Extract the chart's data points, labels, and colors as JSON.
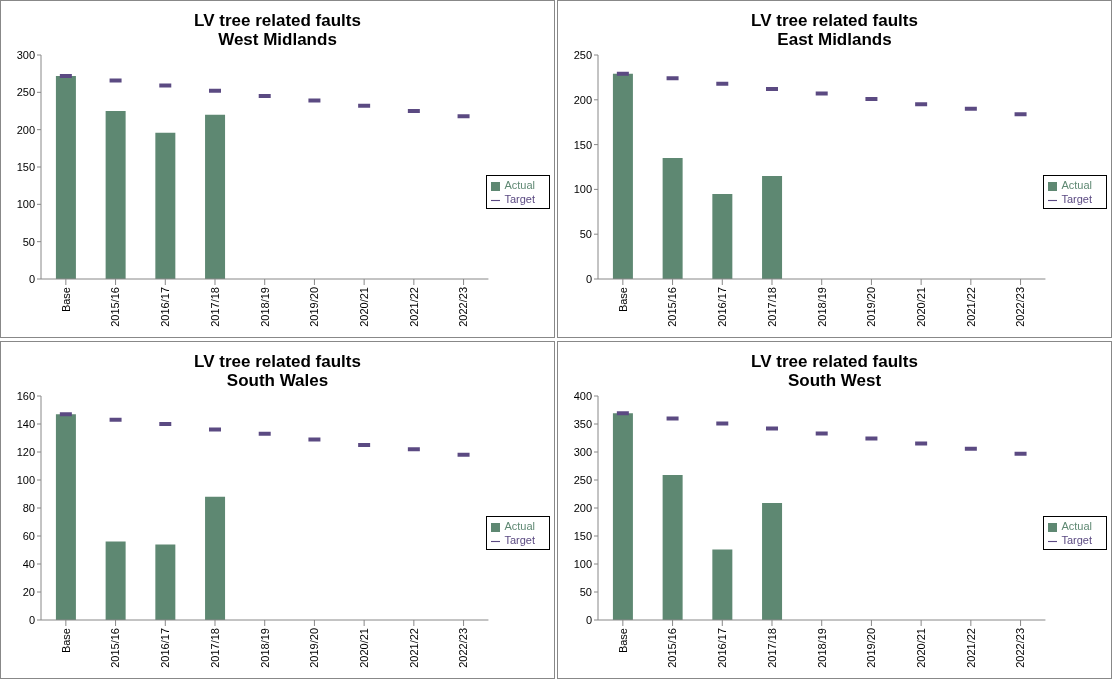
{
  "chart_data": [
    {
      "type": "bar",
      "title": "LV tree related faults",
      "subtitle": "West Midlands",
      "categories": [
        "Base",
        "2015/16",
        "2016/17",
        "2017/18",
        "2018/19",
        "2019/20",
        "2020/21",
        "2021/22",
        "2022/23"
      ],
      "ylim": [
        0,
        300
      ],
      "yticks": [
        0,
        50,
        100,
        150,
        200,
        250,
        300
      ],
      "legend": "right",
      "series": [
        {
          "name": "Actual",
          "color": "#5e8872",
          "values": [
            272,
            225,
            196,
            220,
            null,
            null,
            null,
            null,
            null
          ]
        },
        {
          "name": "Target",
          "type": "scatter",
          "color": "#5b4a82",
          "x": [
            "Base",
            "2015/16",
            "2016/17",
            "2017/18",
            "2018/19",
            "2019/20",
            "2020/21",
            "2021/22",
            "2022/23"
          ],
          "values": [
            272,
            266,
            259,
            252,
            245,
            239,
            232,
            225,
            218
          ]
        }
      ]
    },
    {
      "type": "bar",
      "title": "LV tree related faults",
      "subtitle": "East Midlands",
      "categories": [
        "Base",
        "2015/16",
        "2016/17",
        "2017/18",
        "2018/19",
        "2019/20",
        "2020/21",
        "2021/22",
        "2022/23"
      ],
      "ylim": [
        0,
        250
      ],
      "yticks": [
        0,
        50,
        100,
        150,
        200,
        250
      ],
      "legend": "right",
      "series": [
        {
          "name": "Actual",
          "color": "#5e8872",
          "values": [
            229,
            135,
            95,
            115,
            null,
            null,
            null,
            null,
            null
          ]
        },
        {
          "name": "Target",
          "type": "scatter",
          "color": "#5b4a82",
          "x": [
            "Base",
            "2015/16",
            "2016/17",
            "2017/18",
            "2018/19",
            "2019/20",
            "2020/21",
            "2021/22",
            "2022/23"
          ],
          "values": [
            229,
            224,
            218,
            212,
            207,
            201,
            195,
            190,
            184
          ]
        }
      ]
    },
    {
      "type": "bar",
      "title": "LV tree related faults",
      "subtitle": "South Wales",
      "categories": [
        "Base",
        "2015/16",
        "2016/17",
        "2017/18",
        "2018/19",
        "2019/20",
        "2020/21",
        "2021/22",
        "2022/23"
      ],
      "ylim": [
        0,
        160
      ],
      "yticks": [
        0,
        20,
        40,
        60,
        80,
        100,
        120,
        140,
        160
      ],
      "legend": "right",
      "series": [
        {
          "name": "Actual",
          "color": "#5e8872",
          "values": [
            147,
            56,
            54,
            88,
            null,
            null,
            null,
            null,
            null
          ]
        },
        {
          "name": "Target",
          "type": "scatter",
          "color": "#5b4a82",
          "x": [
            "Base",
            "2015/16",
            "2016/17",
            "2017/18",
            "2018/19",
            "2019/20",
            "2020/21",
            "2021/22",
            "2022/23"
          ],
          "values": [
            147,
            143,
            140,
            136,
            133,
            129,
            125,
            122,
            118
          ]
        }
      ]
    },
    {
      "type": "bar",
      "title": "LV tree related faults",
      "subtitle": "South West",
      "categories": [
        "Base",
        "2015/16",
        "2016/17",
        "2017/18",
        "2018/19",
        "2019/20",
        "2020/21",
        "2021/22",
        "2022/23"
      ],
      "ylim": [
        0,
        400
      ],
      "yticks": [
        0,
        50,
        100,
        150,
        200,
        250,
        300,
        350,
        400
      ],
      "legend": "right",
      "series": [
        {
          "name": "Actual",
          "color": "#5e8872",
          "values": [
            369,
            259,
            126,
            209,
            null,
            null,
            null,
            null,
            null
          ]
        },
        {
          "name": "Target",
          "type": "scatter",
          "color": "#5b4a82",
          "x": [
            "Base",
            "2015/16",
            "2016/17",
            "2017/18",
            "2018/19",
            "2019/20",
            "2020/21",
            "2021/22",
            "2022/23"
          ],
          "values": [
            369,
            360,
            351,
            342,
            333,
            324,
            315,
            306,
            297
          ]
        }
      ]
    }
  ]
}
